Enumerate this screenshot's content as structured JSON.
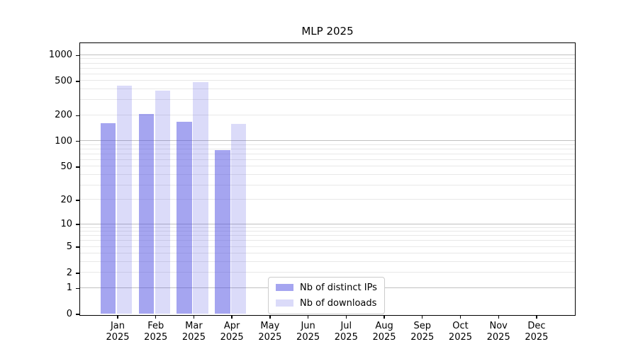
{
  "title": "MLP 2025",
  "colors": {
    "ips_bar": "rgba(75,75,225,0.5)",
    "downloads_bar": "rgba(75,75,225,0.2)",
    "major_grid": "#c0c0c0",
    "minor_grid": "#e8e8e8",
    "axis": "#000000",
    "background": "#ffffff"
  },
  "chart_data": {
    "type": "bar",
    "title": "MLP 2025",
    "categories": [
      "Jan 2025",
      "Feb 2025",
      "Mar 2025",
      "Apr 2025",
      "May 2025",
      "Jun 2025",
      "Jul 2025",
      "Aug 2025",
      "Sep 2025",
      "Oct 2025",
      "Nov 2025",
      "Dec 2025"
    ],
    "series": [
      {
        "name": "Nb of distinct IPs",
        "values": [
          160,
          205,
          165,
          77,
          null,
          null,
          null,
          null,
          null,
          null,
          null,
          null
        ]
      },
      {
        "name": "Nb of downloads",
        "values": [
          435,
          383,
          480,
          157,
          null,
          null,
          null,
          null,
          null,
          null,
          null,
          null
        ]
      }
    ],
    "xlabel": "",
    "ylabel": "",
    "yscale": "log1p",
    "y_ticks": [
      0,
      1,
      2,
      5,
      10,
      20,
      50,
      100,
      200,
      500,
      1000
    ],
    "ylim": [
      0,
      1340
    ],
    "grid": "on",
    "legend_position": "lower center"
  }
}
